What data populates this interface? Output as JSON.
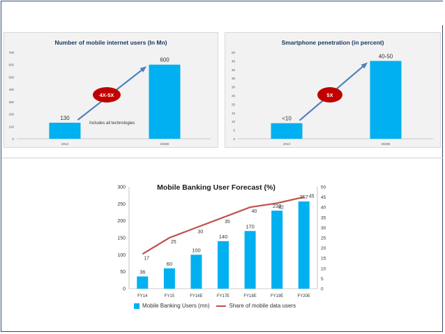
{
  "chart_data": [
    {
      "type": "bar",
      "title": "Number of mobile internet users (In Mn)",
      "categories": [
        "2013",
        "2020E"
      ],
      "values": [
        130,
        600
      ],
      "value_labels": [
        "130",
        "600"
      ],
      "ylim": [
        0,
        700
      ],
      "yticks": [
        "0",
        "100",
        "200",
        "300",
        "400",
        "500",
        "600",
        "700"
      ],
      "annotation": "4X-5X",
      "note": "Includes all technologies",
      "colors": {
        "bar": "#00b0f0",
        "badge": "#c00000",
        "arrow": "#4f81bd"
      }
    },
    {
      "type": "bar",
      "title": "Smartphone penetration (in percent)",
      "categories": [
        "2013",
        "2020E"
      ],
      "values": [
        9,
        45
      ],
      "value_labels": [
        "<10",
        "40-50"
      ],
      "ylim": [
        0,
        50
      ],
      "yticks": [
        "0",
        "5",
        "10",
        "15",
        "20",
        "25",
        "30",
        "35",
        "40",
        "45",
        "50"
      ],
      "annotation": "5X",
      "colors": {
        "bar": "#00b0f0",
        "badge": "#c00000",
        "arrow": "#4f81bd"
      }
    },
    {
      "type": "bar",
      "title": "Mobile Banking User Forecast (%)",
      "categories": [
        "FY14",
        "FY15",
        "FY16E",
        "FY17E",
        "FY18E",
        "FY19E",
        "FY20E"
      ],
      "series": [
        {
          "name": "Mobile Banking Users (mn)",
          "type": "bar",
          "axis": "left",
          "values": [
            36,
            60,
            100,
            140,
            170,
            230,
            257
          ]
        },
        {
          "name": "Share of mobile data users",
          "type": "line",
          "axis": "right",
          "values": [
            17,
            25,
            30,
            35,
            40,
            42,
            45
          ]
        }
      ],
      "ylim": [
        0,
        300
      ],
      "yticks": [
        "0",
        "50",
        "100",
        "150",
        "200",
        "250",
        "300"
      ],
      "y2lim": [
        0,
        50
      ],
      "y2ticks": [
        "0",
        "5",
        "10",
        "15",
        "20",
        "25",
        "30",
        "35",
        "40",
        "45",
        "50"
      ],
      "legend": "bottom",
      "colors": {
        "bar": "#00b0f0",
        "line": "#c0504d"
      }
    }
  ]
}
